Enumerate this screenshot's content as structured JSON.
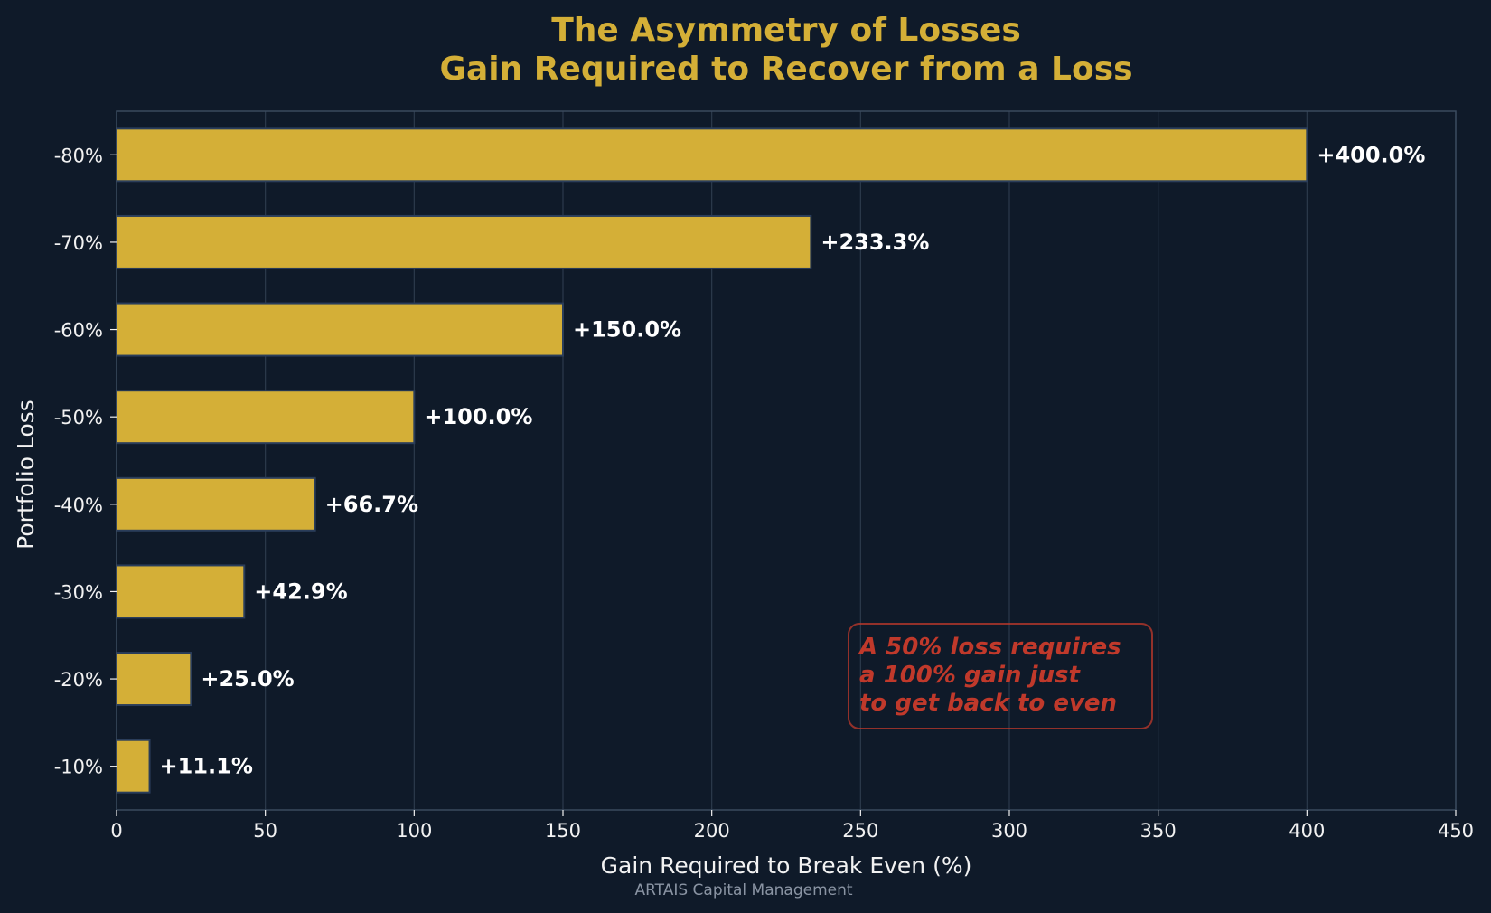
{
  "colors": {
    "background": "#0f1a29",
    "title": "#d4af37",
    "bar_fill": "#d4af37",
    "bar_edge": "#2a3d5a",
    "grid": "#2c3a4c",
    "spine": "#3a4a5e",
    "text": "#f2f2f2",
    "annotation": "#c0392b",
    "footer": "#8a94a3"
  },
  "chart_data": {
    "type": "bar",
    "orientation": "horizontal",
    "title": "The Asymmetry of Losses",
    "subtitle": "Gain Required to Recover from a Loss",
    "xlabel": "Gain Required to Break Even (%)",
    "ylabel": "Portfolio Loss",
    "xlim": [
      0,
      450
    ],
    "xticks": [
      0,
      50,
      100,
      150,
      200,
      250,
      300,
      350,
      400,
      450
    ],
    "grid": "vertical",
    "categories": [
      "-10%",
      "-20%",
      "-30%",
      "-40%",
      "-50%",
      "-60%",
      "-70%",
      "-80%"
    ],
    "values": [
      11.1,
      25.0,
      42.9,
      66.7,
      100.0,
      150.0,
      233.3,
      400.0
    ],
    "value_labels": [
      "+11.1%",
      "+25.0%",
      "+42.9%",
      "+66.7%",
      "+100.0%",
      "+150.0%",
      "+233.3%",
      "+400.0%"
    ],
    "annotation": {
      "lines": [
        "A 50% loss requires",
        "a 100% gain just",
        "to get back to even"
      ],
      "anchor": [
        250,
        -50
      ]
    }
  },
  "footer": "ARTAIS Capital Management"
}
